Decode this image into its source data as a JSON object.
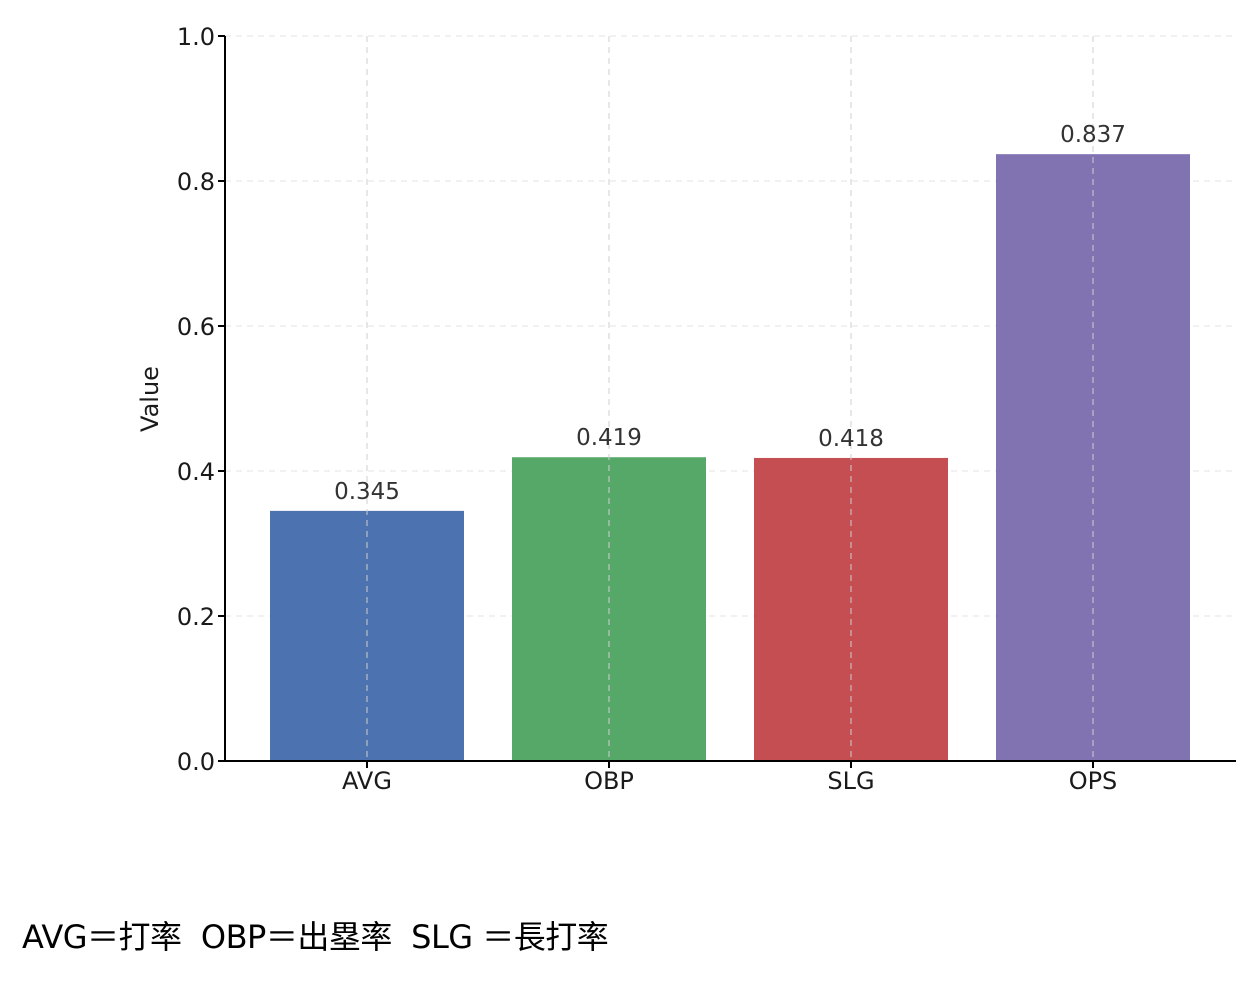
{
  "chart_data": {
    "type": "bar",
    "title": "",
    "xlabel": "",
    "ylabel": "Value",
    "categories": [
      "AVG",
      "OBP",
      "SLG",
      "OPS"
    ],
    "values": [
      0.345,
      0.419,
      0.418,
      0.837
    ],
    "data_labels": [
      "0.345",
      "0.419",
      "0.418",
      "0.837"
    ],
    "colors": [
      "#4c72b0",
      "#55a868",
      "#c44e52",
      "#8172b2"
    ],
    "ylim": [
      0,
      1.0
    ],
    "yticks": [
      "0.0",
      "0.2",
      "0.4",
      "0.6",
      "0.8",
      "1.0"
    ],
    "grid": true
  },
  "caption": "AVG＝打率  OBP＝出塁率  SLG ＝長打率"
}
